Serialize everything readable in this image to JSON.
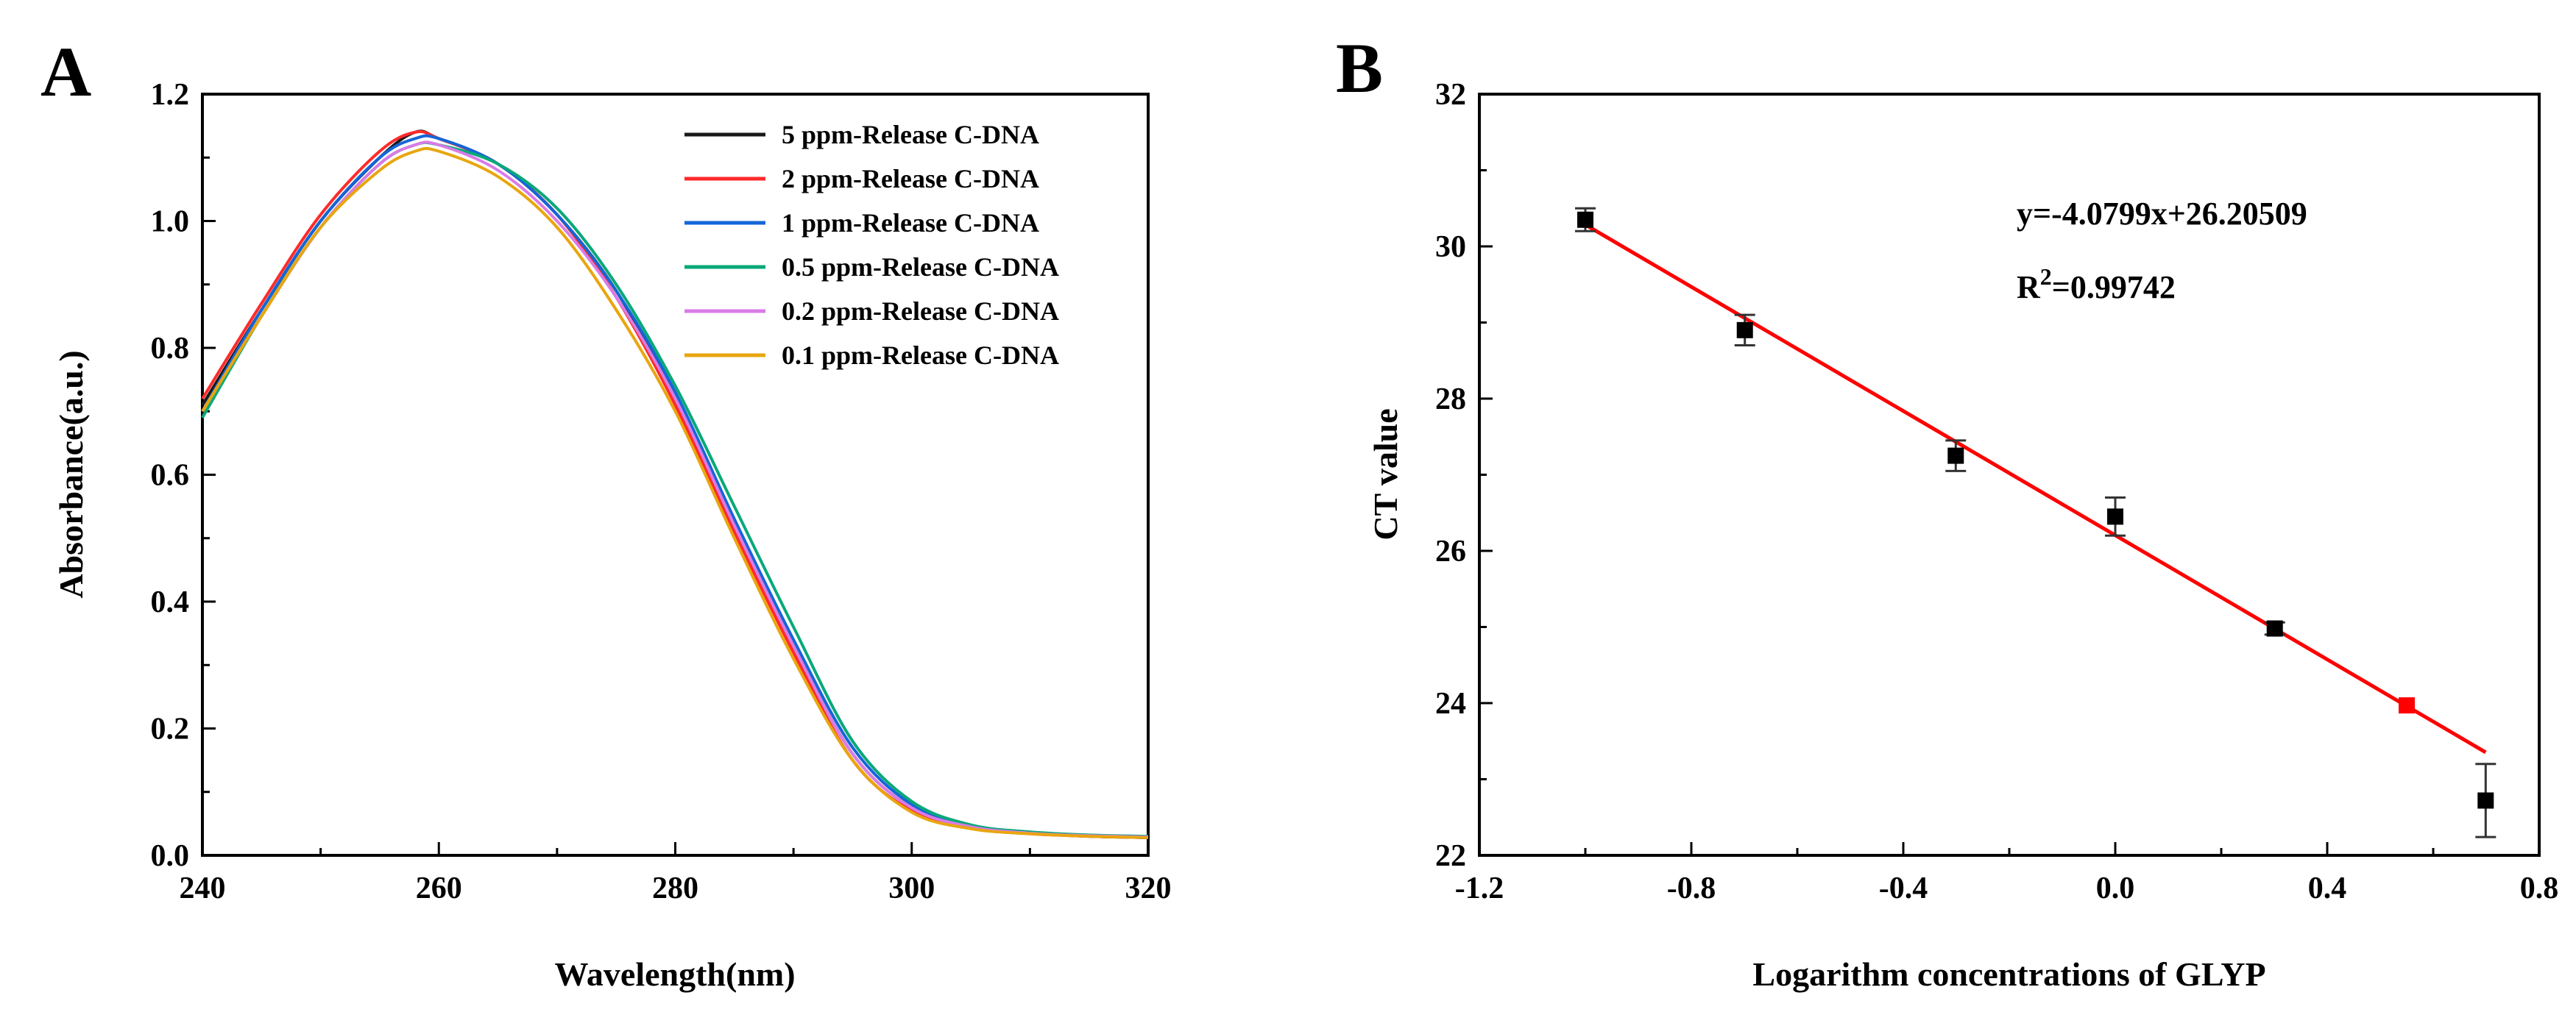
{
  "panels": [
    {
      "letter": "A",
      "chart_data": {
        "type": "line",
        "title": "",
        "xlabel": "Wavelength(nm)",
        "ylabel": "Absorbance(a.u.)",
        "xlim": [
          240,
          320
        ],
        "ylim": [
          0.0,
          1.2
        ],
        "xticks": [
          "240",
          "260",
          "280",
          "300",
          "320"
        ],
        "yticks": [
          "0.0",
          "0.2",
          "0.4",
          "0.6",
          "0.8",
          "1.0",
          "1.2"
        ],
        "grid": false,
        "legend_position": "top-right",
        "x": [
          240,
          245,
          250,
          255,
          258,
          260,
          265,
          270,
          275,
          280,
          285,
          290,
          295,
          300,
          305,
          310,
          315,
          320
        ],
        "series": [
          {
            "name": "5 ppm-Release C-DNA",
            "color": "#1a1a1a",
            "values": [
              0.71,
              0.86,
              1.0,
              1.1,
              1.14,
              1.13,
              1.09,
              1.01,
              0.89,
              0.72,
              0.52,
              0.33,
              0.16,
              0.075,
              0.045,
              0.035,
              0.03,
              0.028
            ]
          },
          {
            "name": "2 ppm-Release C-DNA",
            "color": "#ff2a2a",
            "values": [
              0.72,
              0.87,
              1.01,
              1.11,
              1.14,
              1.13,
              1.09,
              1.01,
              0.88,
              0.71,
              0.51,
              0.32,
              0.15,
              0.07,
              0.043,
              0.034,
              0.03,
              0.028
            ]
          },
          {
            "name": "1 ppm-Release C-DNA",
            "color": "#1565d8",
            "values": [
              0.7,
              0.86,
              1.0,
              1.1,
              1.13,
              1.13,
              1.09,
              1.01,
              0.89,
              0.73,
              0.53,
              0.34,
              0.17,
              0.08,
              0.046,
              0.036,
              0.031,
              0.029
            ]
          },
          {
            "name": "0.5 ppm-Release C-DNA",
            "color": "#0aa879",
            "values": [
              0.69,
              0.85,
              0.99,
              1.09,
              1.12,
              1.12,
              1.09,
              1.02,
              0.9,
              0.74,
              0.55,
              0.36,
              0.18,
              0.085,
              0.048,
              0.037,
              0.032,
              0.03
            ]
          },
          {
            "name": "0.2 ppm-Release C-DNA",
            "color": "#d97be6",
            "values": [
              0.7,
              0.85,
              0.99,
              1.09,
              1.12,
              1.12,
              1.08,
              1.0,
              0.88,
              0.72,
              0.52,
              0.33,
              0.16,
              0.075,
              0.045,
              0.035,
              0.031,
              0.029
            ]
          },
          {
            "name": "0.1 ppm-Release C-DNA",
            "color": "#e8a60f",
            "values": [
              0.7,
              0.85,
              0.99,
              1.08,
              1.11,
              1.11,
              1.07,
              0.99,
              0.86,
              0.7,
              0.5,
              0.31,
              0.15,
              0.068,
              0.042,
              0.034,
              0.03,
              0.028
            ]
          }
        ]
      }
    },
    {
      "letter": "B",
      "chart_data": {
        "type": "scatter",
        "title": "",
        "xlabel": "Logarithm concentrations of GLYP",
        "ylabel": "CT value",
        "xlim": [
          -1.2,
          0.8
        ],
        "ylim": [
          22,
          32
        ],
        "xticks": [
          "-1.2",
          "-0.8",
          "-0.4",
          "0.0",
          "0.4",
          "0.8"
        ],
        "yticks": [
          "22",
          "24",
          "26",
          "28",
          "30",
          "32"
        ],
        "grid": false,
        "points": [
          {
            "x": -1.0,
            "y": 30.35,
            "err": 0.15,
            "color": "#000000"
          },
          {
            "x": -0.699,
            "y": 28.9,
            "err": 0.2,
            "color": "#000000"
          },
          {
            "x": -0.301,
            "y": 27.25,
            "err": 0.2,
            "color": "#000000"
          },
          {
            "x": 0.0,
            "y": 26.45,
            "err": 0.25,
            "color": "#000000"
          },
          {
            "x": 0.301,
            "y": 24.98,
            "err": 0.08,
            "color": "#000000"
          },
          {
            "x": 0.55,
            "y": 23.97,
            "err": 0.0,
            "color": "#ff0000"
          },
          {
            "x": 0.699,
            "y": 22.72,
            "err": 0.48,
            "color": "#000000"
          }
        ],
        "fit_line": {
          "slope": -4.0799,
          "intercept": 26.20509,
          "x_range": [
            -1.0,
            0.699
          ],
          "color": "#ff0000"
        },
        "annotations": {
          "equation": "y=-4.0799x+26.20509",
          "r2_prefix": "R",
          "r2_sup": "2",
          "r2_value": "=0.99742"
        }
      }
    }
  ]
}
